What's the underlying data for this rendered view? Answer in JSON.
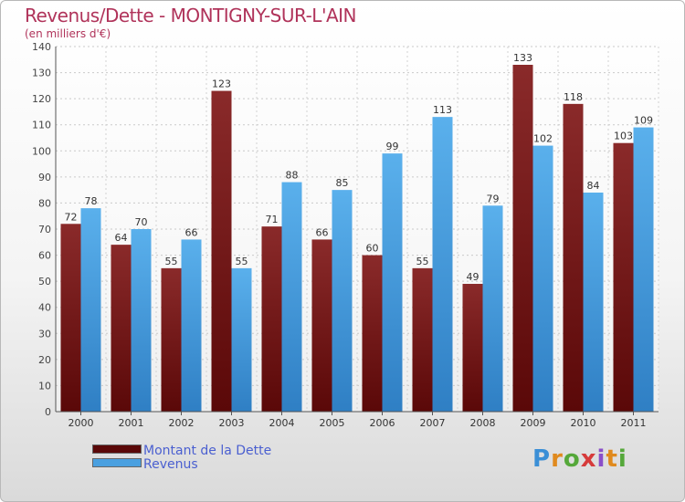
{
  "chart_data": {
    "type": "bar",
    "title": "Revenus/Dette - MONTIGNY-SUR-L'AIN",
    "subtitle": "(en milliers d'€)",
    "categories": [
      "2000",
      "2001",
      "2002",
      "2003",
      "2004",
      "2005",
      "2006",
      "2007",
      "2008",
      "2009",
      "2010",
      "2011"
    ],
    "series": [
      {
        "name": "Montant de la Dette",
        "color": "#7a1a1a",
        "values": [
          72,
          64,
          55,
          123,
          71,
          66,
          60,
          55,
          49,
          133,
          118,
          103
        ]
      },
      {
        "name": "Revenus",
        "color": "#4aa0e0",
        "values": [
          78,
          70,
          66,
          55,
          88,
          85,
          99,
          113,
          79,
          102,
          84,
          109
        ]
      }
    ],
    "ylim": [
      0,
      140
    ],
    "yticks": [
      0,
      10,
      20,
      30,
      40,
      50,
      60,
      70,
      80,
      90,
      100,
      110,
      120,
      130,
      140
    ],
    "grid": true,
    "legend_position": "bottom-left"
  },
  "logo": {
    "letters": [
      "P",
      "r",
      "o",
      "x",
      "i",
      "t",
      "i"
    ]
  }
}
